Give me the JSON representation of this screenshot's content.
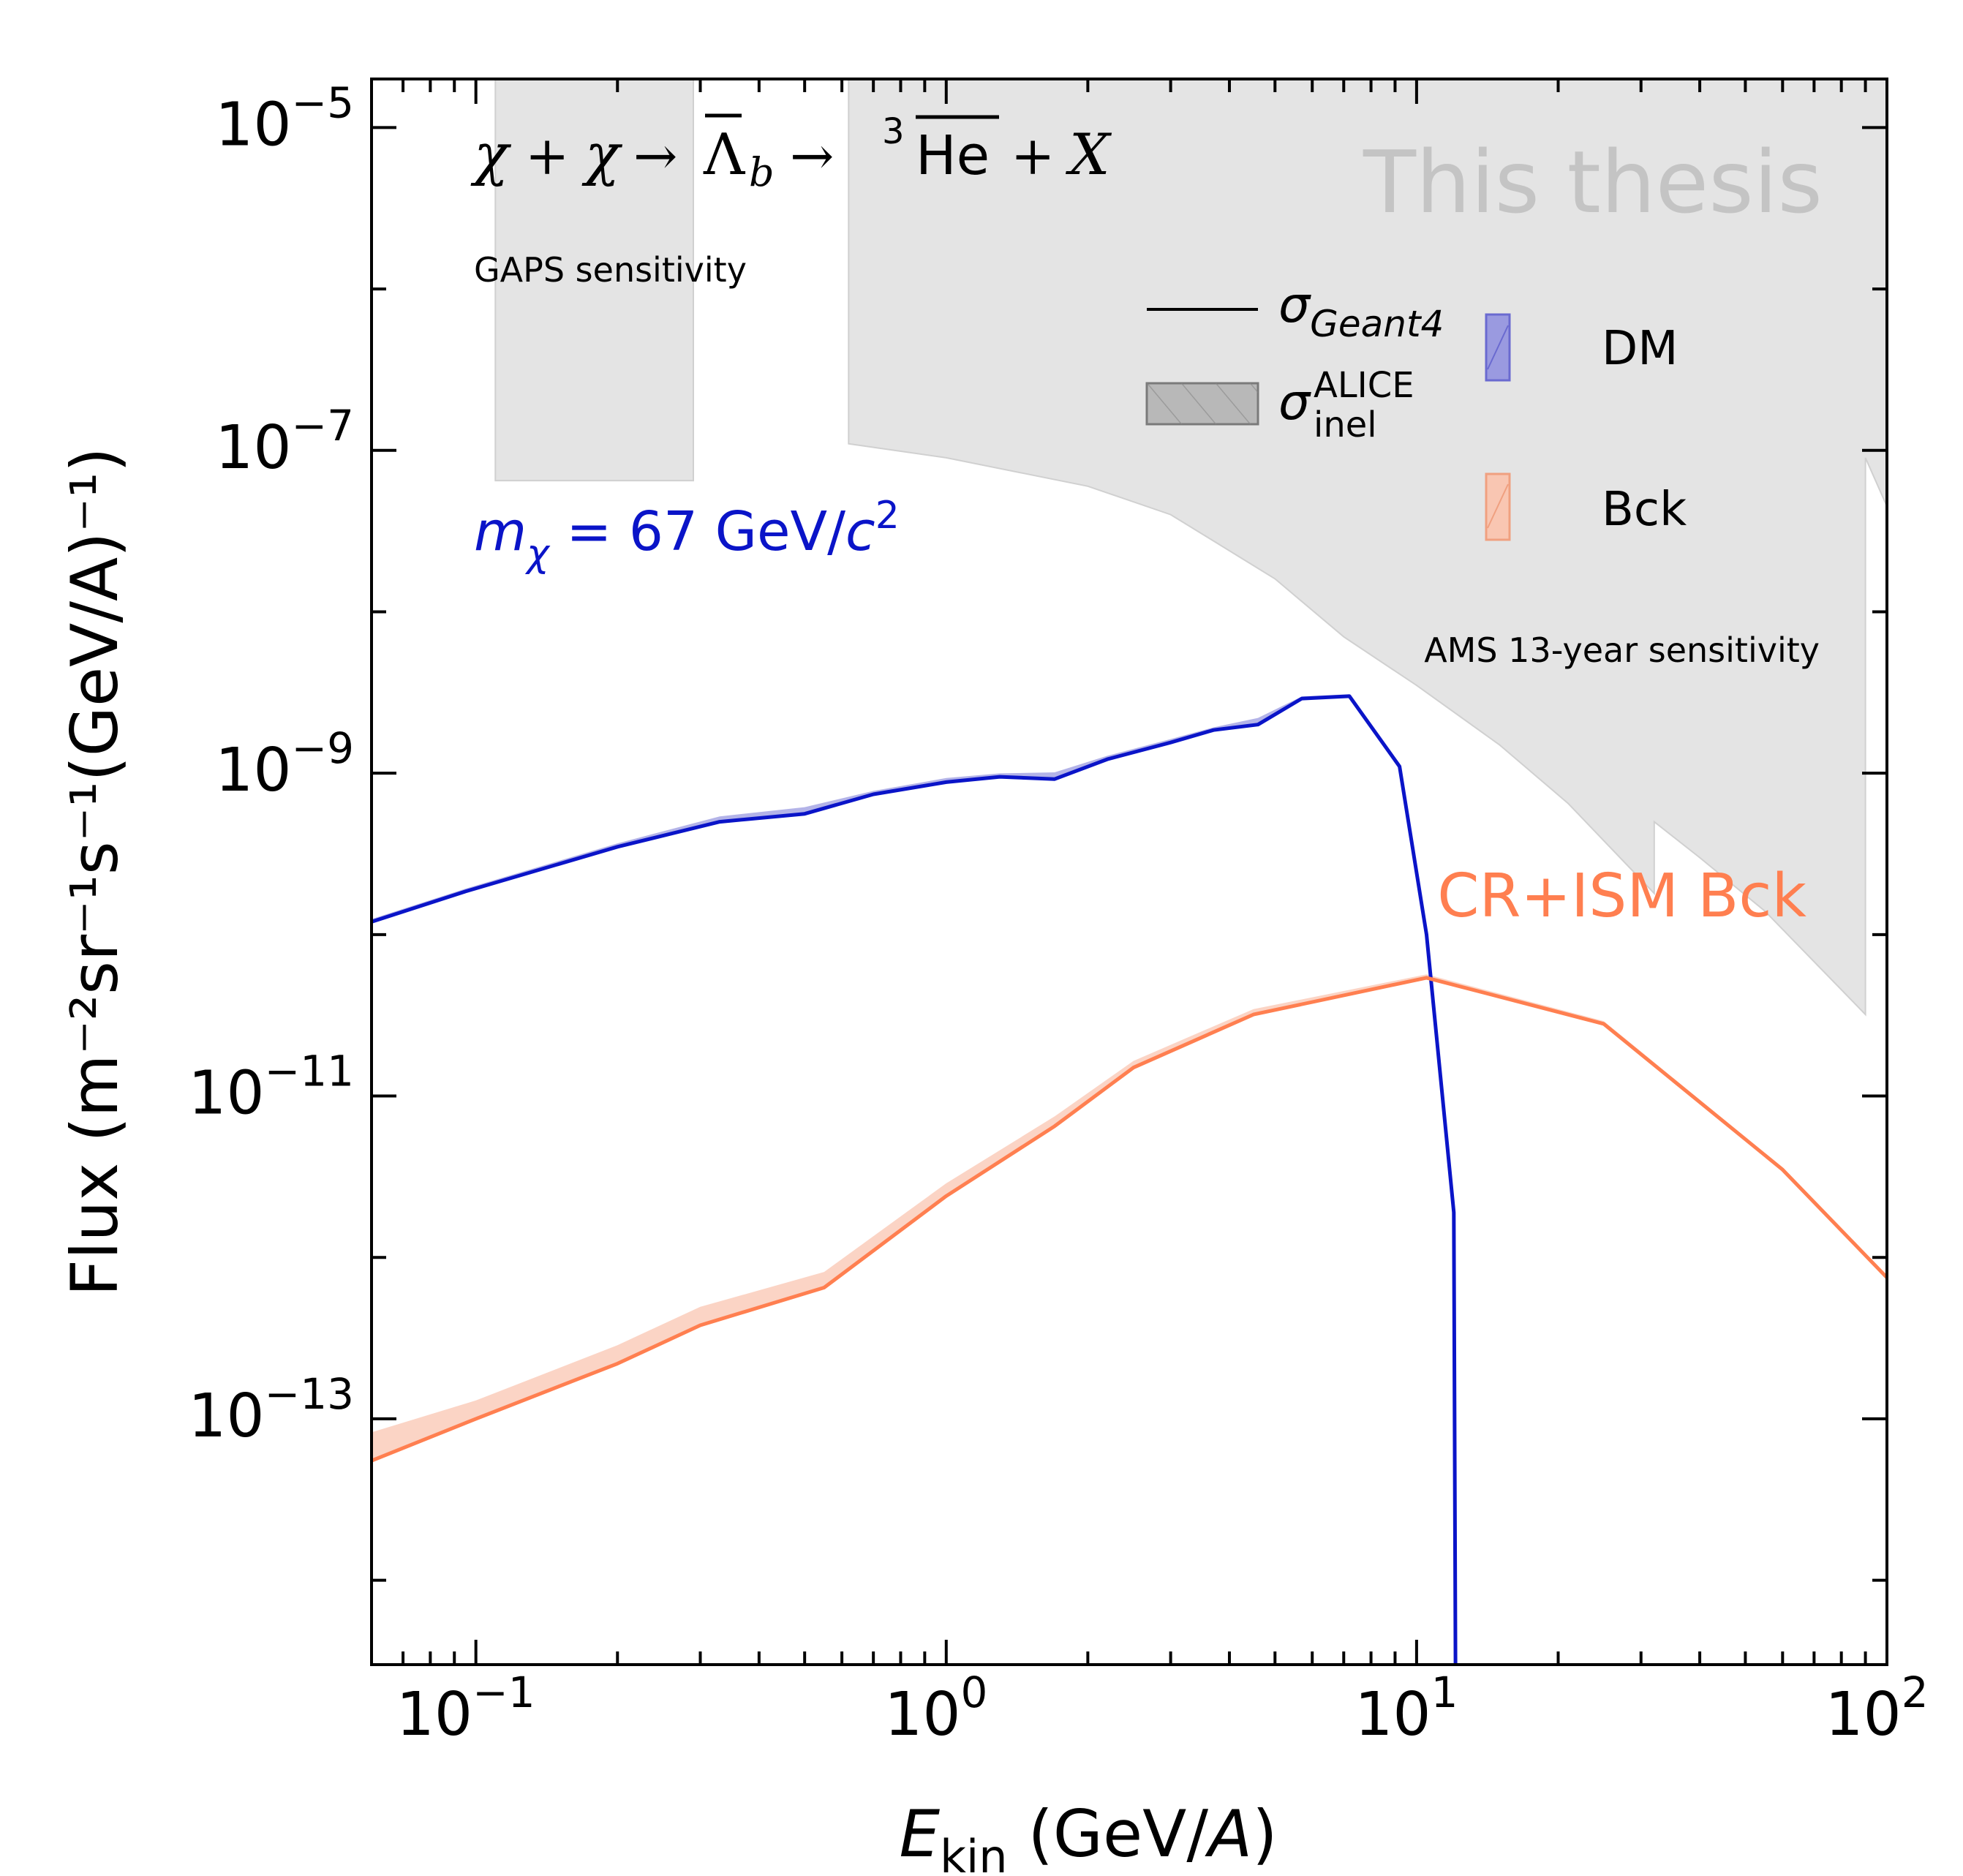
{
  "chart_data": {
    "type": "line",
    "xlabel": {
      "main": "E",
      "sub": "kin",
      "unit": " (GeV/",
      "unit_italic": "A",
      "close": ")"
    },
    "ylabel": {
      "text": "Flux (m⁻²sr⁻¹s⁻¹(GeV/A)⁻¹)"
    },
    "xscale": "log",
    "yscale": "log",
    "xlim": [
      0.06,
      100
    ],
    "ylim": [
      3e-15,
      2e-05
    ],
    "xticks": [
      {
        "value": 0.1,
        "base": "10",
        "exp": "−1"
      },
      {
        "value": 1,
        "base": "10",
        "exp": "0"
      },
      {
        "value": 10,
        "base": "10",
        "exp": "1"
      },
      {
        "value": 100,
        "base": "10",
        "exp": "2"
      }
    ],
    "yticks": [
      {
        "value": 1e-05,
        "base": "10",
        "exp": "−5"
      },
      {
        "value": 1e-07,
        "base": "10",
        "exp": "−7"
      },
      {
        "value": 1e-09,
        "base": "10",
        "exp": "−9"
      },
      {
        "value": 1e-11,
        "base": "10",
        "exp": "−11"
      },
      {
        "value": 1e-13,
        "base": "10",
        "exp": "−13"
      }
    ],
    "grid": false,
    "colors": {
      "dm": "#0a14c8",
      "bck": "#ff7f50",
      "dm_band": "#9a9ae0",
      "bck_band": "#f9c6b2",
      "sensitivity": "#e4e4e4",
      "watermark": "#c4c4c4"
    },
    "annotations": {
      "process": "χ + χ → Λ̄b → ³He̅ + X",
      "gaps": "GAPS sensitivity",
      "ams": "AMS 13-year sensitivity",
      "mass_prefix": "m",
      "mass_sub": "χ",
      "mass_value": " = 67 GeV/",
      "mass_c": "c",
      "mass_exp": "2",
      "crism": "CR+ISM Bck",
      "watermark": "This thesis"
    },
    "legend": {
      "placement": "top-right",
      "geant_symbol": "σ",
      "geant_sub": "Geant4",
      "alice_symbol": "σ",
      "alice_sup": "ALICE",
      "alice_sub": "inel",
      "dm": "DM",
      "bck": "Bck"
    },
    "series": [
      {
        "key": "dm",
        "x": [
          0.06,
          0.095,
          0.2,
          0.33,
          0.5,
          0.7,
          1.0,
          1.3,
          1.7,
          2.2,
          3.0,
          3.7,
          4.6,
          5.7,
          7.2,
          9.2,
          10.5,
          12.0,
          12.1
        ],
        "y": [
          1.2e-10,
          1.85e-10,
          3.5e-10,
          5e-10,
          5.6e-10,
          7.4e-10,
          8.8e-10,
          9.5e-10,
          9.2e-10,
          1.22e-09,
          1.55e-09,
          1.85e-09,
          2e-09,
          2.9e-09,
          3e-09,
          1.1e-09,
          1e-10,
          1.9e-12,
          3e-15
        ],
        "band_upper_factor": [
          1.04,
          1.04,
          1.05,
          1.08,
          1.1,
          1.05,
          1.06,
          1.05,
          1.1,
          1.05,
          1.05,
          1.04,
          1.1,
          1.03,
          1.03,
          1.03,
          1.03,
          1.03,
          1.0
        ]
      },
      {
        "key": "bck",
        "x": [
          0.06,
          0.1,
          0.2,
          0.3,
          0.55,
          1.0,
          1.7,
          2.5,
          4.5,
          10.5,
          25,
          60,
          100
        ],
        "y": [
          5.5e-14,
          1e-13,
          2.2e-13,
          3.8e-13,
          6.5e-13,
          2.4e-12,
          6.5e-12,
          1.5e-11,
          3.2e-11,
          5.4e-11,
          2.8e-11,
          3.5e-12,
          7.5e-13
        ],
        "band_upper_factor": [
          1.5,
          1.3,
          1.3,
          1.3,
          1.25,
          1.2,
          1.15,
          1.1,
          1.08,
          1.05,
          1.04,
          1.03,
          1.0
        ]
      }
    ],
    "sensitivity_regions": [
      {
        "key": "gaps",
        "x": [
          0.11,
          0.11,
          0.29,
          0.29
        ],
        "y": [
          2e-05,
          6.5e-08,
          6.5e-08,
          2e-05
        ]
      },
      {
        "key": "ams",
        "x": [
          0.62,
          0.62,
          1.0,
          2.0,
          3.0,
          5.0,
          7.0,
          10.0,
          15.0,
          21.0,
          32.0,
          32.0,
          40.0,
          55.0,
          90.0,
          90.0,
          100.0,
          100.0
        ],
        "y": [
          2e-05,
          1.1e-07,
          9e-08,
          6e-08,
          4e-08,
          1.6e-08,
          7e-09,
          3.5e-09,
          1.5e-09,
          6.5e-10,
          1.8e-10,
          5e-10,
          3e-10,
          1.4e-10,
          3.2e-11,
          9e-08,
          4.5e-08,
          2e-05
        ]
      }
    ]
  }
}
